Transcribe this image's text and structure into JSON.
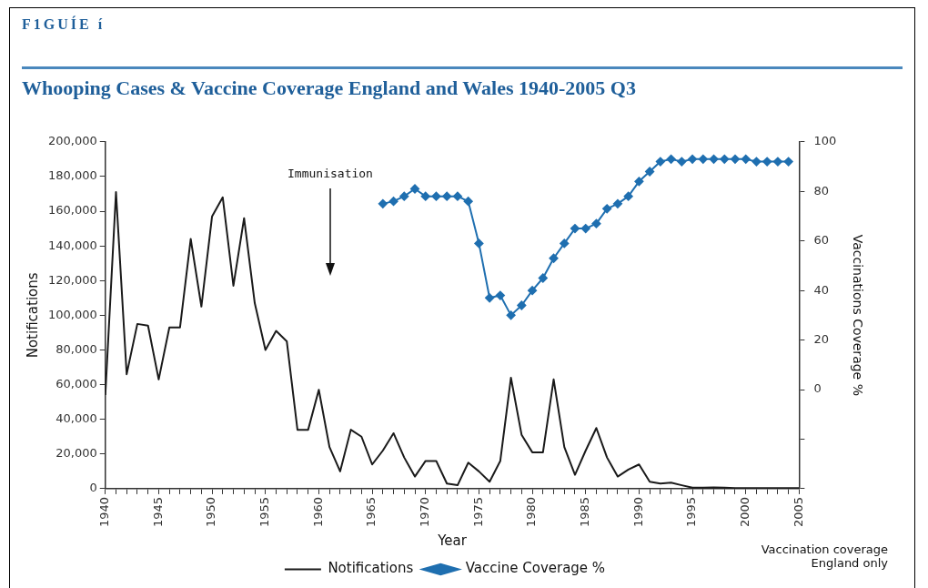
{
  "chart_data": {
    "type": "line",
    "title": "Whooping Cases & Vaccine Coverage England and Wales 1940-2005 Q3",
    "xlabel": "Year",
    "ylabel": "Notifications",
    "y2label": "Vaccinations Coverage %",
    "annotations": [
      "F1GUÍE í",
      "Immunisation",
      "Vaccination coverage England only"
    ],
    "series": [
      {
        "name": "Notifications",
        "color": "#1a1a1a",
        "marker": "none",
        "x": [
          1940,
          1941,
          1942,
          1943,
          1944,
          1945,
          1946,
          1947,
          1948,
          1949,
          1950,
          1951,
          1952,
          1953,
          1954,
          1955,
          1956,
          1957,
          1958,
          1959,
          1960,
          1961,
          1962,
          1963,
          1964,
          1965,
          1966,
          1967,
          1968,
          1969,
          1970,
          1971,
          1972,
          1973,
          1974,
          1975,
          1976,
          1977,
          1978,
          1979,
          1980,
          1981,
          1982,
          1983,
          1984,
          1985,
          1986,
          1987,
          1988,
          1989,
          1990,
          1991,
          1992,
          1993,
          1994,
          1995,
          1996,
          1997,
          1998,
          1999,
          2000,
          2001,
          2002,
          2003,
          2004,
          2005
        ],
        "values": [
          54000,
          171000,
          66000,
          95000,
          94000,
          63000,
          93000,
          93000,
          144000,
          105000,
          157000,
          168000,
          117000,
          156000,
          107000,
          80000,
          91000,
          85000,
          34000,
          34000,
          57000,
          24000,
          10000,
          34000,
          30000,
          14000,
          22000,
          32000,
          18000,
          7000,
          16000,
          16000,
          3000,
          2000,
          15000,
          10000,
          4000,
          16000,
          64000,
          31000,
          21000,
          21000,
          63000,
          24000,
          8000,
          22000,
          35000,
          18000,
          7000,
          11000,
          14000,
          4000,
          3000,
          3500,
          2000,
          600,
          600,
          800,
          600,
          300,
          300,
          300,
          400,
          400,
          400,
          300
        ]
      },
      {
        "name": "Vaccine Coverage %",
        "color": "#1f6fb0",
        "axis": "y2",
        "marker": "diamond",
        "x": [
          1966,
          1967,
          1968,
          1969,
          1970,
          1971,
          1972,
          1973,
          1974,
          1975,
          1976,
          1977,
          1978,
          1979,
          1980,
          1981,
          1982,
          1983,
          1984,
          1985,
          1986,
          1987,
          1988,
          1989,
          1990,
          1991,
          1992,
          1993,
          1994,
          1995,
          1996,
          1997,
          1998,
          1999,
          2000,
          2001,
          2002,
          2003,
          2004
        ],
        "values": [
          75,
          76,
          78,
          81,
          78,
          78,
          78,
          78,
          76,
          59,
          37,
          38,
          30,
          34,
          40,
          45,
          53,
          59,
          65,
          65,
          67,
          73,
          75,
          78,
          84,
          88,
          92,
          93,
          92,
          93,
          93,
          93,
          93,
          93,
          93,
          92,
          92,
          92,
          92
        ]
      }
    ],
    "xlim": [
      1940,
      2005
    ],
    "xticks": [
      1940,
      {
        "value": 1941,
        "label": null
      },
      {
        "value": 1942,
        "label": null
      },
      {
        "value": 1943,
        "label": null
      },
      {
        "value": 1944,
        "label": null
      },
      1945,
      {
        "value": 1946,
        "label": null
      },
      {
        "value": 1947,
        "label": null
      },
      {
        "value": 1948,
        "label": null
      },
      {
        "value": 1949,
        "label": null
      },
      1950,
      {
        "value": 1951,
        "label": null
      },
      {
        "value": 1952,
        "label": null
      },
      {
        "value": 1953,
        "label": null
      },
      {
        "value": 1954,
        "label": null
      },
      1955,
      {
        "value": 1956,
        "label": null
      },
      {
        "value": 1957,
        "label": null
      },
      {
        "value": 1958,
        "label": null
      },
      {
        "value": 1959,
        "label": null
      },
      1960,
      {
        "value": 1961,
        "label": null
      },
      {
        "value": 1962,
        "label": null
      },
      {
        "value": 1963,
        "label": null
      },
      {
        "value": 1964,
        "label": null
      },
      1965,
      {
        "value": 1966,
        "label": null
      },
      {
        "value": 1967,
        "label": null
      },
      {
        "value": 1968,
        "label": null
      },
      {
        "value": 1969,
        "label": null
      },
      1970,
      {
        "value": 1971,
        "label": null
      },
      {
        "value": 1972,
        "label": null
      },
      {
        "value": 1973,
        "label": null
      },
      {
        "value": 1974,
        "label": null
      },
      1975,
      {
        "value": 1976,
        "label": null
      },
      {
        "value": 1977,
        "label": null
      },
      {
        "value": 1978,
        "label": null
      },
      {
        "value": 1979,
        "label": null
      },
      1980,
      {
        "value": 1981,
        "label": null
      },
      {
        "value": 1982,
        "label": null
      },
      {
        "value": 1983,
        "label": null
      },
      {
        "value": 1984,
        "label": null
      },
      1985,
      {
        "value": 1986,
        "label": null
      },
      {
        "value": 1987,
        "label": null
      },
      {
        "value": 1988,
        "label": null
      },
      {
        "value": 1989,
        "label": null
      },
      1990,
      {
        "value": 1991,
        "label": null
      },
      {
        "value": 1992,
        "label": null
      },
      {
        "value": 1993,
        "label": null
      },
      {
        "value": 1994,
        "label": null
      },
      1995,
      {
        "value": 1996,
        "label": null
      },
      {
        "value": 1997,
        "label": null
      },
      {
        "value": 1998,
        "label": null
      },
      {
        "value": 1999,
        "label": null
      },
      2000,
      {
        "value": 2001,
        "label": null
      },
      {
        "value": 2002,
        "label": null
      },
      {
        "value": 2003,
        "label": null
      },
      {
        "value": 2004,
        "label": null
      },
      2005
    ],
    "ylim": [
      0,
      200000
    ],
    "yticks": [
      0,
      {
        "value": 20000,
        "label": "20,000"
      },
      {
        "value": 40000,
        "label": "40,000"
      },
      {
        "value": 60000,
        "label": "60,000"
      },
      {
        "value": 80000,
        "label": "80,000"
      },
      {
        "value": 100000,
        "label": "100,000"
      },
      {
        "value": 120000,
        "label": "120,000"
      },
      {
        "value": 140000,
        "label": "140,000"
      },
      {
        "value": 160000,
        "label": "160,000"
      },
      {
        "value": 180000,
        "label": "180,000"
      },
      {
        "value": 200000,
        "label": "200,000"
      }
    ],
    "y2lim": [
      -40,
      100
    ],
    "y2ticks": [
      {
        "value": -40,
        "label": null
      },
      {
        "value": -20,
        "label": null
      },
      0,
      20,
      40,
      60,
      80,
      100
    ],
    "grid": false,
    "legend": "bottom"
  }
}
